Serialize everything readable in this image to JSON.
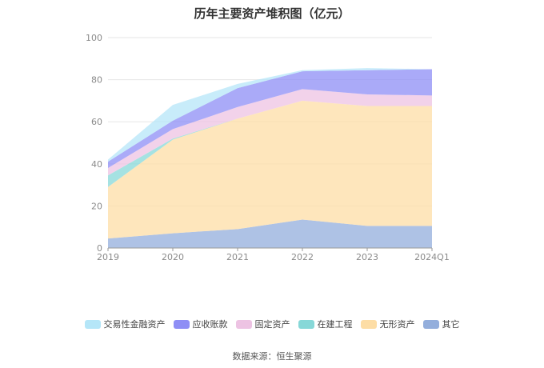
{
  "title": "历年主要资产堆积图（亿元）",
  "source": "数据来源：恒生聚源",
  "chart_data": {
    "type": "area",
    "stacked": true,
    "categories": [
      "2019",
      "2020",
      "2021",
      "2022",
      "2023",
      "2024Q1"
    ],
    "ylim": [
      0,
      100
    ],
    "yticks": [
      0,
      20,
      40,
      60,
      80,
      100
    ],
    "grid": true,
    "legend_position": "bottom",
    "series": [
      {
        "name": "其它",
        "color": "#93AEDC",
        "values": [
          4.5,
          7.0,
          9.0,
          13.5,
          10.5,
          10.5
        ]
      },
      {
        "name": "无形资产",
        "color": "#FDDDA5",
        "values": [
          24.5,
          44.5,
          52.5,
          56.5,
          57.0,
          57.0
        ]
      },
      {
        "name": "在建工程",
        "color": "#87D8D8",
        "values": [
          5.5,
          0.5,
          0.0,
          0.0,
          0.0,
          0.0
        ]
      },
      {
        "name": "固定资产",
        "color": "#EDC3E3",
        "values": [
          3.5,
          4.5,
          5.5,
          5.5,
          5.5,
          5.0
        ]
      },
      {
        "name": "应收账款",
        "color": "#8E8EF5",
        "values": [
          3.0,
          4.0,
          9.0,
          8.5,
          11.5,
          12.5
        ]
      },
      {
        "name": "交易性金融资产",
        "color": "#B5E6F8",
        "values": [
          1.0,
          7.5,
          2.0,
          0.5,
          1.0,
          0.0
        ]
      }
    ],
    "legend_order": [
      "交易性金融资产",
      "应收账款",
      "固定资产",
      "在建工程",
      "无形资产",
      "其它"
    ]
  }
}
